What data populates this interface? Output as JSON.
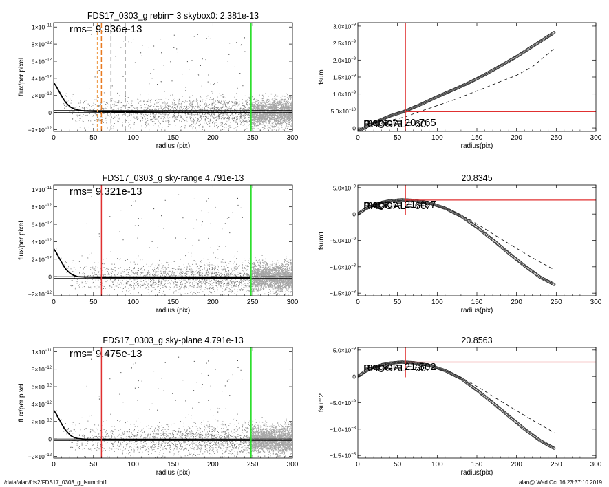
{
  "footer": {
    "left": "/data/alan/fds2/FDS17_0303_g_fsumplot1",
    "right": "alan@  Wed Oct 16 23:37:10 2019"
  },
  "chart_data": [
    {
      "id": "flux-top",
      "type": "scatter",
      "title": "FDS17_0303_g rebin= 3    skybox0:  2.381e-13",
      "annotation": "rms= 9.936e-13",
      "xlabel": "radius (pix)",
      "ylabel": "flux/per pixel",
      "xlim": [
        0,
        300
      ],
      "ylim": [
        -2.2e-12,
        1.05e-11
      ],
      "xticks": [
        0,
        50,
        100,
        150,
        200,
        250,
        300
      ],
      "yticks": [
        {
          "v": -2e-12,
          "m": "−2×10",
          "e": "−12"
        },
        {
          "v": 0,
          "m": "0",
          "e": ""
        },
        {
          "v": 2e-12,
          "m": "2×10",
          "e": "−12"
        },
        {
          "v": 4e-12,
          "m": "4×10",
          "e": "−12"
        },
        {
          "v": 6e-12,
          "m": "6×10",
          "e": "−12"
        },
        {
          "v": 8e-12,
          "m": "8×10",
          "e": "−12"
        },
        {
          "v": 1e-11,
          "m": "1×10",
          "e": "−11"
        }
      ],
      "vlines": [
        {
          "x": 55,
          "color": "#f0a050",
          "dash": "4,3"
        },
        {
          "x": 60,
          "color": "#e87a20",
          "dash": "7,3"
        },
        {
          "x": 72,
          "color": "#aaaaaa",
          "dash": "6,4"
        },
        {
          "x": 90,
          "color": "#aaaaaa",
          "dash": "6,4"
        },
        {
          "x": 248,
          "color": "#22dd22",
          "dash": ""
        }
      ],
      "profile": [
        [
          0,
          3.5e-12
        ],
        [
          3,
          3.1e-12
        ],
        [
          6,
          2.6e-12
        ],
        [
          9,
          2.1e-12
        ],
        [
          12,
          1.6e-12
        ],
        [
          15,
          1.2e-12
        ],
        [
          18,
          9e-13
        ],
        [
          21,
          6.5e-13
        ],
        [
          25,
          4.5e-13
        ],
        [
          30,
          3e-13
        ],
        [
          35,
          2.2e-13
        ],
        [
          40,
          1.7e-13
        ],
        [
          50,
          1.3e-13
        ],
        [
          60,
          1e-13
        ],
        [
          80,
          8e-14
        ],
        [
          100,
          6e-14
        ],
        [
          150,
          3e-14
        ],
        [
          200,
          1e-14
        ],
        [
          248,
          0
        ]
      ],
      "hlines": [
        0,
        2.5e-13
      ]
    },
    {
      "id": "flux-mid",
      "type": "scatter",
      "title": "FDS17_0303_g sky-range  4.791e-13",
      "annotation": "rms= 9.321e-13",
      "xlabel": "radius (pix)",
      "ylabel": "flux/per pixel",
      "xlim": [
        0,
        300
      ],
      "ylim": [
        -2.2e-12,
        1.05e-11
      ],
      "xticks": [
        0,
        50,
        100,
        150,
        200,
        250,
        300
      ],
      "yticks": [
        {
          "v": -2e-12,
          "m": "−2×10",
          "e": "−12"
        },
        {
          "v": 0,
          "m": "0",
          "e": ""
        },
        {
          "v": 2e-12,
          "m": "2×10",
          "e": "−12"
        },
        {
          "v": 4e-12,
          "m": "4×10",
          "e": "−12"
        },
        {
          "v": 6e-12,
          "m": "6×10",
          "e": "−12"
        },
        {
          "v": 8e-12,
          "m": "8×10",
          "e": "−12"
        },
        {
          "v": 1e-11,
          "m": "1×10",
          "e": "−11"
        }
      ],
      "vlines": [
        {
          "x": 60,
          "color": "#e03030",
          "dash": ""
        },
        {
          "x": 248,
          "color": "#22dd22",
          "dash": ""
        }
      ],
      "profile": [
        [
          0,
          3.2e-12
        ],
        [
          3,
          2.8e-12
        ],
        [
          6,
          2.3e-12
        ],
        [
          9,
          1.8e-12
        ],
        [
          12,
          1.3e-12
        ],
        [
          15,
          9e-13
        ],
        [
          18,
          6e-13
        ],
        [
          21,
          3.5e-13
        ],
        [
          25,
          1.5e-13
        ],
        [
          30,
          0
        ],
        [
          40,
          -5e-14
        ],
        [
          60,
          -1e-13
        ],
        [
          100,
          -1e-13
        ],
        [
          150,
          -1.2e-13
        ],
        [
          200,
          -1.3e-13
        ],
        [
          248,
          -1.3e-13
        ]
      ],
      "hlines": [
        0,
        -2e-13
      ]
    },
    {
      "id": "flux-bot",
      "type": "scatter",
      "title": "FDS17_0303_g sky-plane  4.791e-13",
      "annotation": "rms= 9.475e-13",
      "xlabel": "radius (pix)",
      "ylabel": "flux/per pixel",
      "xlim": [
        0,
        300
      ],
      "ylim": [
        -2.2e-12,
        1.05e-11
      ],
      "xticks": [
        0,
        50,
        100,
        150,
        200,
        250,
        300
      ],
      "yticks": [
        {
          "v": -2e-12,
          "m": "−2×10",
          "e": "−12"
        },
        {
          "v": 0,
          "m": "0",
          "e": ""
        },
        {
          "v": 2e-12,
          "m": "2×10",
          "e": "−12"
        },
        {
          "v": 4e-12,
          "m": "4×10",
          "e": "−12"
        },
        {
          "v": 6e-12,
          "m": "6×10",
          "e": "−12"
        },
        {
          "v": 8e-12,
          "m": "8×10",
          "e": "−12"
        },
        {
          "v": 1e-11,
          "m": "1×10",
          "e": "−11"
        }
      ],
      "vlines": [
        {
          "x": 60,
          "color": "#e03030",
          "dash": ""
        },
        {
          "x": 248,
          "color": "#22dd22",
          "dash": ""
        }
      ],
      "profile": [
        [
          0,
          3.3e-12
        ],
        [
          3,
          2.9e-12
        ],
        [
          6,
          2.4e-12
        ],
        [
          9,
          1.9e-12
        ],
        [
          12,
          1.4e-12
        ],
        [
          15,
          1e-12
        ],
        [
          18,
          7e-13
        ],
        [
          21,
          4e-13
        ],
        [
          25,
          2e-13
        ],
        [
          30,
          5e-14
        ],
        [
          40,
          -3e-14
        ],
        [
          60,
          -8e-14
        ],
        [
          100,
          -9e-14
        ],
        [
          150,
          -1e-13
        ],
        [
          200,
          -1.1e-13
        ],
        [
          248,
          -1.1e-13
        ]
      ],
      "hlines": [
        0,
        -2e-13
      ]
    },
    {
      "id": "fsum-top",
      "type": "line",
      "title": "",
      "xlabel": "radius(pix)",
      "ylabel": "fsum",
      "xlim": [
        0,
        300
      ],
      "ylim": [
        -1e-10,
        3.1e-09
      ],
      "xticks": [
        0,
        50,
        100,
        150,
        200,
        250,
        300
      ],
      "yticks": [
        {
          "v": 0,
          "m": "0",
          "e": ""
        },
        {
          "v": 5e-10,
          "m": "5.0×10",
          "e": "−10"
        },
        {
          "v": 1e-09,
          "m": "1.0×10",
          "e": "−9"
        },
        {
          "v": 1.5e-09,
          "m": "1.5×10",
          "e": "−9"
        },
        {
          "v": 2e-09,
          "m": "2.0×10",
          "e": "−9"
        },
        {
          "v": 2.5e-09,
          "m": "2.5×10",
          "e": "−9"
        },
        {
          "v": 3e-09,
          "m": "3.0×10",
          "e": "−9"
        }
      ],
      "curve": [
        [
          0,
          -1e-10
        ],
        [
          20,
          1.5e-10
        ],
        [
          40,
          3.5e-10
        ],
        [
          60,
          5e-10
        ],
        [
          80,
          7e-10
        ],
        [
          100,
          9.2e-10
        ],
        [
          120,
          1.12e-09
        ],
        [
          140,
          1.33e-09
        ],
        [
          160,
          1.57e-09
        ],
        [
          180,
          1.83e-09
        ],
        [
          200,
          2.1e-09
        ],
        [
          220,
          2.4e-09
        ],
        [
          240,
          2.7e-09
        ],
        [
          248,
          2.82e-09
        ]
      ],
      "dashed": [
        [
          0,
          -1e-10
        ],
        [
          40,
          2.2e-10
        ],
        [
          60,
          3.3e-10
        ],
        [
          80,
          5e-10
        ],
        [
          100,
          6.6e-10
        ],
        [
          120,
          8.2e-10
        ],
        [
          140,
          1e-09
        ],
        [
          160,
          1.18e-09
        ],
        [
          180,
          1.37e-09
        ],
        [
          200,
          1.55e-09
        ],
        [
          220,
          1.8e-09
        ],
        [
          248,
          2.35e-09
        ]
      ],
      "crosshair": {
        "x": 60,
        "y": 4.8e-10
      },
      "labels": [
        "magtot= 20.765",
        "RADGAL=   60."
      ]
    },
    {
      "id": "fsum1",
      "type": "line",
      "title": "20.8345",
      "xlabel": "radius(pix)",
      "ylabel": "fsum1",
      "xlim": [
        0,
        300
      ],
      "ylim": [
        -1.55e-08,
        5.5e-09
      ],
      "xticks": [
        0,
        50,
        100,
        150,
        200,
        250,
        300
      ],
      "yticks": [
        {
          "v": -1.5e-08,
          "m": "−1.5×10",
          "e": "−8"
        },
        {
          "v": -1e-08,
          "m": "−1.0×10",
          "e": "−8"
        },
        {
          "v": -5e-09,
          "m": "−5.0×10",
          "e": "−9"
        },
        {
          "v": 0,
          "m": "0",
          "e": ""
        },
        {
          "v": 5e-09,
          "m": "5.0×10",
          "e": "−9"
        }
      ],
      "curve": [
        [
          0,
          0
        ],
        [
          10,
          1e-09
        ],
        [
          20,
          1.7e-09
        ],
        [
          30,
          2.2e-09
        ],
        [
          40,
          2.5e-09
        ],
        [
          55,
          2.7e-09
        ],
        [
          70,
          2.6e-09
        ],
        [
          90,
          2.1e-09
        ],
        [
          110,
          1.1e-09
        ],
        [
          130,
          -4e-10
        ],
        [
          150,
          -2.5e-09
        ],
        [
          170,
          -4.9e-09
        ],
        [
          190,
          -7.4e-09
        ],
        [
          210,
          -9.8e-09
        ],
        [
          230,
          -1.2e-08
        ],
        [
          248,
          -1.34e-08
        ]
      ],
      "dashed": [
        [
          0,
          0
        ],
        [
          20,
          1.6e-09
        ],
        [
          40,
          2.5e-09
        ],
        [
          60,
          2.6e-09
        ],
        [
          80,
          2.3e-09
        ],
        [
          100,
          1.5e-09
        ],
        [
          120,
          5e-10
        ],
        [
          140,
          -1e-09
        ],
        [
          160,
          -2.8e-09
        ],
        [
          180,
          -4.7e-09
        ],
        [
          200,
          -6.5e-09
        ],
        [
          220,
          -8.3e-09
        ],
        [
          248,
          -1.06e-08
        ]
      ],
      "crosshair": {
        "x": 60,
        "y": 2.65e-09
      },
      "labels": [
        "magtot= 21.497",
        "RADGAL=   60."
      ]
    },
    {
      "id": "fsum2",
      "type": "line",
      "title": "20.8563",
      "xlabel": "radius(pix)",
      "ylabel": "fsum2",
      "xlim": [
        0,
        300
      ],
      "ylim": [
        -1.55e-08,
        5.5e-09
      ],
      "xticks": [
        0,
        50,
        100,
        150,
        200,
        250,
        300
      ],
      "yticks": [
        {
          "v": -1.5e-08,
          "m": "−1.5×10",
          "e": "−8"
        },
        {
          "v": -1e-08,
          "m": "−1.0×10",
          "e": "−8"
        },
        {
          "v": -5e-09,
          "m": "−5.0×10",
          "e": "−9"
        },
        {
          "v": 0,
          "m": "0",
          "e": ""
        },
        {
          "v": 5e-09,
          "m": "5.0×10",
          "e": "−9"
        }
      ],
      "curve": [
        [
          0,
          0
        ],
        [
          10,
          1e-09
        ],
        [
          20,
          1.7e-09
        ],
        [
          30,
          2.2e-09
        ],
        [
          40,
          2.5e-09
        ],
        [
          55,
          2.7e-09
        ],
        [
          70,
          2.6e-09
        ],
        [
          90,
          2.1e-09
        ],
        [
          110,
          1.1e-09
        ],
        [
          130,
          -4e-10
        ],
        [
          150,
          -2.6e-09
        ],
        [
          170,
          -5e-09
        ],
        [
          190,
          -7.5e-09
        ],
        [
          210,
          -1e-08
        ],
        [
          230,
          -1.22e-08
        ],
        [
          248,
          -1.37e-08
        ]
      ],
      "dashed": [
        [
          0,
          0
        ],
        [
          20,
          1.6e-09
        ],
        [
          40,
          2.5e-09
        ],
        [
          60,
          2.6e-09
        ],
        [
          80,
          2.3e-09
        ],
        [
          100,
          1.5e-09
        ],
        [
          120,
          5e-10
        ],
        [
          140,
          -1e-09
        ],
        [
          160,
          -2.8e-09
        ],
        [
          180,
          -4.7e-09
        ],
        [
          200,
          -6.5e-09
        ],
        [
          220,
          -8.3e-09
        ],
        [
          248,
          -1.07e-08
        ]
      ],
      "crosshair": {
        "x": 60,
        "y": 2.7e-09
      },
      "labels": [
        "magtot= 21.502",
        "RADGAL=   60."
      ]
    }
  ]
}
